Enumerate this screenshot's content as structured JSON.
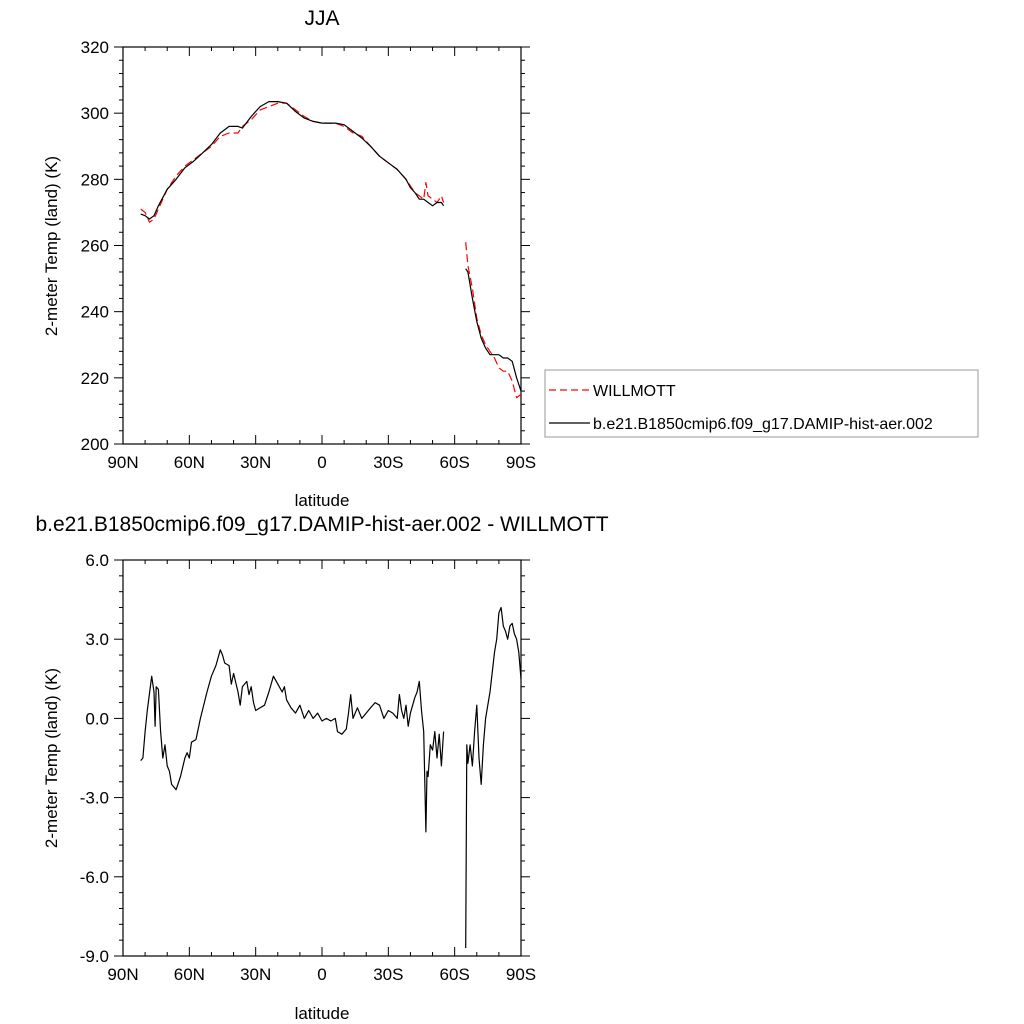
{
  "chart_data": [
    {
      "type": "line",
      "title": "JJA",
      "xlabel": "latitude",
      "ylabel": "2-meter Temp (land) (K)",
      "xlim": [
        -90,
        90
      ],
      "ylim": [
        200,
        320
      ],
      "xticks": [
        -90,
        -60,
        -30,
        0,
        30,
        60,
        90
      ],
      "xtick_labels": [
        "90N",
        "60N",
        "30N",
        "0",
        "30S",
        "60S",
        "90S"
      ],
      "yticks": [
        200,
        220,
        240,
        260,
        280,
        300,
        320
      ],
      "ytick_labels": [
        "200",
        "220",
        "240",
        "260",
        "280",
        "300",
        "320"
      ],
      "legend": "right",
      "series": [
        {
          "name": "WILLMOTT",
          "color": "#ff0000",
          "dash": "dashed",
          "segments": [
            [
              [
                -82,
                271
              ],
              [
                -80,
                270
              ],
              [
                -78,
                267
              ],
              [
                -76,
                268
              ],
              [
                -74,
                271
              ],
              [
                -70,
                277
              ],
              [
                -66,
                281
              ],
              [
                -62,
                284
              ],
              [
                -58,
                286
              ],
              [
                -54,
                288
              ],
              [
                -50,
                290
              ],
              [
                -46,
                293
              ],
              [
                -42,
                294
              ],
              [
                -38,
                294
              ],
              [
                -36,
                296
              ],
              [
                -32,
                298
              ],
              [
                -28,
                301
              ],
              [
                -24,
                302
              ],
              [
                -20,
                303
              ],
              [
                -16,
                303
              ],
              [
                -12,
                301
              ],
              [
                -8,
                299
              ],
              [
                -4,
                297.5
              ],
              [
                0,
                297
              ],
              [
                6,
                297
              ],
              [
                10,
                296
              ],
              [
                14,
                294
              ],
              [
                18,
                293
              ],
              [
                22,
                290
              ],
              [
                26,
                287
              ],
              [
                30,
                285
              ],
              [
                34,
                283
              ],
              [
                38,
                280
              ],
              [
                40,
                278
              ],
              [
                42,
                276
              ],
              [
                44,
                275
              ],
              [
                46,
                274
              ],
              [
                47,
                279
              ],
              [
                48,
                275
              ],
              [
                50,
                274
              ],
              [
                52,
                273
              ],
              [
                54,
                275
              ],
              [
                55,
                273
              ]
            ],
            [
              [
                65,
                261
              ],
              [
                66,
                254
              ],
              [
                68,
                247
              ],
              [
                70,
                238
              ],
              [
                72,
                233
              ],
              [
                74,
                230
              ],
              [
                76,
                228
              ],
              [
                78,
                226
              ],
              [
                80,
                223
              ],
              [
                82,
                222
              ],
              [
                84,
                222
              ],
              [
                86,
                219
              ],
              [
                88,
                214
              ],
              [
                90,
                215
              ]
            ]
          ]
        },
        {
          "name": "b.e21.B1850cmip6.f09_g17.DAMIP-hist-aer.002",
          "color": "#000000",
          "dash": "solid",
          "segments": [
            [
              [
                -82,
                269.5
              ],
              [
                -80,
                269
              ],
              [
                -78,
                268
              ],
              [
                -76,
                269
              ],
              [
                -74,
                272
              ],
              [
                -70,
                277
              ],
              [
                -66,
                280
              ],
              [
                -62,
                283.5
              ],
              [
                -58,
                285.5
              ],
              [
                -54,
                288
              ],
              [
                -50,
                290.5
              ],
              [
                -46,
                294
              ],
              [
                -42,
                296
              ],
              [
                -38,
                296
              ],
              [
                -36,
                295.5
              ],
              [
                -32,
                299
              ],
              [
                -28,
                302
              ],
              [
                -24,
                303.5
              ],
              [
                -20,
                303.5
              ],
              [
                -16,
                303
              ],
              [
                -12,
                300.5
              ],
              [
                -8,
                298.5
              ],
              [
                -4,
                297.5
              ],
              [
                0,
                297
              ],
              [
                6,
                297
              ],
              [
                10,
                296.5
              ],
              [
                14,
                294.5
              ],
              [
                18,
                292.5
              ],
              [
                22,
                290
              ],
              [
                26,
                287
              ],
              [
                30,
                285
              ],
              [
                34,
                283
              ],
              [
                38,
                280
              ],
              [
                40,
                277.5
              ],
              [
                42,
                276
              ],
              [
                44,
                274
              ],
              [
                46,
                274
              ],
              [
                48,
                273
              ],
              [
                50,
                272
              ],
              [
                52,
                273
              ],
              [
                54,
                273
              ],
              [
                55,
                272
              ]
            ],
            [
              [
                65,
                253
              ],
              [
                66,
                252
              ],
              [
                68,
                244
              ],
              [
                70,
                237
              ],
              [
                72,
                232
              ],
              [
                74,
                229
              ],
              [
                76,
                227
              ],
              [
                78,
                227
              ],
              [
                80,
                227
              ],
              [
                82,
                226
              ],
              [
                84,
                226
              ],
              [
                86,
                225
              ],
              [
                88,
                220
              ],
              [
                90,
                216
              ]
            ]
          ]
        }
      ]
    },
    {
      "type": "line",
      "title": "b.e21.B1850cmip6.f09_g17.DAMIP-hist-aer.002 - WILLMOTT",
      "xlabel": "latitude",
      "ylabel": "2-meter Temp (land) (K)",
      "xlim": [
        -90,
        90
      ],
      "ylim": [
        -9,
        6
      ],
      "xticks": [
        -90,
        -60,
        -30,
        0,
        30,
        60,
        90
      ],
      "xtick_labels": [
        "90N",
        "60N",
        "30N",
        "0",
        "30S",
        "60S",
        "90S"
      ],
      "yticks": [
        -9,
        -6,
        -3,
        0,
        3,
        6
      ],
      "ytick_labels": [
        "-9.0",
        "-6.0",
        "-3.0",
        "0.0",
        "3.0",
        "6.0"
      ],
      "series": [
        {
          "color": "#000000",
          "dash": "solid",
          "segments": [
            [
              [
                -82,
                -1.6
              ],
              [
                -81,
                -1.5
              ],
              [
                -80,
                -0.5
              ],
              [
                -79,
                0.3
              ],
              [
                -77,
                1.6
              ],
              [
                -76,
                1.0
              ],
              [
                -75.5,
                -0.3
              ],
              [
                -75,
                1.2
              ],
              [
                -74,
                1.1
              ],
              [
                -73,
                -0.5
              ],
              [
                -72,
                -1.5
              ],
              [
                -71,
                -1.0
              ],
              [
                -70,
                -1.8
              ],
              [
                -69,
                -2.0
              ],
              [
                -68,
                -2.5
              ],
              [
                -66,
                -2.7
              ],
              [
                -64,
                -2.2
              ],
              [
                -62,
                -1.5
              ],
              [
                -61,
                -1.3
              ],
              [
                -60,
                -1.5
              ],
              [
                -59,
                -0.9
              ],
              [
                -57,
                -0.8
              ],
              [
                -55,
                0.0
              ],
              [
                -52,
                1.0
              ],
              [
                -50,
                1.6
              ],
              [
                -48,
                2.0
              ],
              [
                -46,
                2.6
              ],
              [
                -45,
                2.4
              ],
              [
                -44,
                2.1
              ],
              [
                -42,
                2.0
              ],
              [
                -41,
                1.3
              ],
              [
                -40,
                1.7
              ],
              [
                -38,
                1.0
              ],
              [
                -37,
                0.5
              ],
              [
                -36,
                1.2
              ],
              [
                -34,
                1.4
              ],
              [
                -33,
                0.9
              ],
              [
                -32,
                1.2
              ],
              [
                -31,
                0.6
              ],
              [
                -30,
                0.3
              ],
              [
                -28,
                0.4
              ],
              [
                -26,
                0.5
              ],
              [
                -24,
                1.0
              ],
              [
                -22,
                1.6
              ],
              [
                -20,
                1.3
              ],
              [
                -18,
                1.0
              ],
              [
                -17,
                1.2
              ],
              [
                -16,
                0.7
              ],
              [
                -14,
                0.4
              ],
              [
                -12,
                0.2
              ],
              [
                -10,
                0.5
              ],
              [
                -8,
                0.0
              ],
              [
                -6,
                0.3
              ],
              [
                -4,
                0.0
              ],
              [
                -2,
                0.2
              ],
              [
                0,
                -0.1
              ],
              [
                2,
                0.0
              ],
              [
                4,
                -0.1
              ],
              [
                6,
                0.0
              ],
              [
                7,
                -0.5
              ],
              [
                9,
                -0.6
              ],
              [
                11,
                -0.4
              ],
              [
                12,
                0.2
              ],
              [
                13,
                0.9
              ],
              [
                14,
                0.0
              ],
              [
                16,
                0.4
              ],
              [
                18,
                0.0
              ],
              [
                20,
                0.2
              ],
              [
                22,
                0.4
              ],
              [
                24,
                0.6
              ],
              [
                26,
                0.5
              ],
              [
                28,
                0.0
              ],
              [
                30,
                0.3
              ],
              [
                32,
                0.2
              ],
              [
                34,
                0.0
              ],
              [
                35,
                0.9
              ],
              [
                36,
                0.3
              ],
              [
                37,
                0.0
              ],
              [
                38,
                0.5
              ],
              [
                39,
                -0.3
              ],
              [
                40,
                0.2
              ],
              [
                42,
                0.8
              ],
              [
                43,
                1.0
              ],
              [
                44,
                1.4
              ],
              [
                45,
                0.3
              ],
              [
                46,
                -0.5
              ],
              [
                47,
                -4.3
              ],
              [
                47.5,
                -2.0
              ],
              [
                48,
                -2.2
              ],
              [
                49,
                -1.0
              ],
              [
                50,
                -1.2
              ],
              [
                51,
                -0.5
              ],
              [
                52,
                -1.5
              ],
              [
                53,
                -0.6
              ],
              [
                54,
                -1.8
              ],
              [
                55,
                -0.5
              ]
            ],
            [
              [
                65,
                -8.7
              ],
              [
                65.5,
                -1.0
              ],
              [
                66,
                -1.7
              ],
              [
                67,
                -1.0
              ],
              [
                68,
                -1.8
              ],
              [
                69,
                -0.5
              ],
              [
                70,
                0.5
              ],
              [
                71,
                -1.5
              ],
              [
                72,
                -2.5
              ],
              [
                73,
                -1.0
              ],
              [
                74,
                0.0
              ],
              [
                75,
                0.5
              ],
              [
                76,
                1.0
              ],
              [
                78,
                2.5
              ],
              [
                79,
                3.0
              ],
              [
                80,
                4.0
              ],
              [
                81,
                4.2
              ],
              [
                82,
                3.5
              ],
              [
                83,
                3.3
              ],
              [
                84,
                3.0
              ],
              [
                85,
                3.5
              ],
              [
                86,
                3.6
              ],
              [
                87,
                3.2
              ],
              [
                88,
                3.0
              ],
              [
                89,
                2.5
              ],
              [
                90,
                1.5
              ]
            ]
          ]
        }
      ]
    }
  ]
}
